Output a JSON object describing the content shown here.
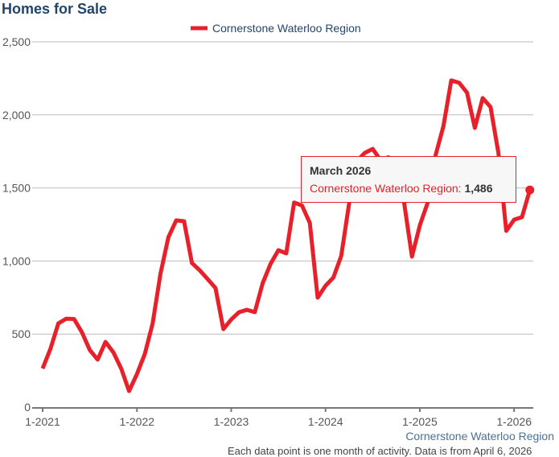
{
  "chart_data": {
    "type": "line",
    "title": "Homes for Sale",
    "xlabel": "",
    "ylabel": "",
    "ylim": [
      0,
      2500
    ],
    "yticks": [
      0,
      500,
      1000,
      1500,
      2000,
      2500
    ],
    "ytick_labels": [
      "0",
      "500",
      "1,000",
      "1,500",
      "2,000",
      "2,500"
    ],
    "xtick_labels": [
      "1-2021",
      "1-2022",
      "1-2023",
      "1-2024",
      "1-2025",
      "1-2026"
    ],
    "x_start": "2021-01",
    "x_end": "2026-03",
    "grid": true,
    "legend_position": "top",
    "series": [
      {
        "name": "Cornerstone Waterloo Region",
        "color": "#e8202a",
        "values": [
          264,
          400,
          573,
          605,
          603,
          512,
          391,
          325,
          446,
          375,
          264,
          110,
          226,
          363,
          573,
          914,
          1162,
          1278,
          1272,
          986,
          936,
          876,
          815,
          534,
          600,
          650,
          666,
          650,
          848,
          980,
          1074,
          1052,
          1400,
          1380,
          1261,
          749,
          831,
          887,
          1035,
          1393,
          1685,
          1740,
          1767,
          1690,
          1710,
          1600,
          1400,
          1030,
          1244,
          1399,
          1723,
          1922,
          2236,
          2220,
          2153,
          1911,
          2115,
          2054,
          1740,
          1206,
          1283,
          1300,
          1486
        ]
      }
    ]
  },
  "tooltip": {
    "title": "March 2026",
    "series_label": "Cornerstone Waterloo Region:",
    "value": "1,486"
  },
  "footer": {
    "credit": "Cornerstone Waterloo Region",
    "note": "Each data point is one month of activity. Data is from April 6, 2026"
  }
}
